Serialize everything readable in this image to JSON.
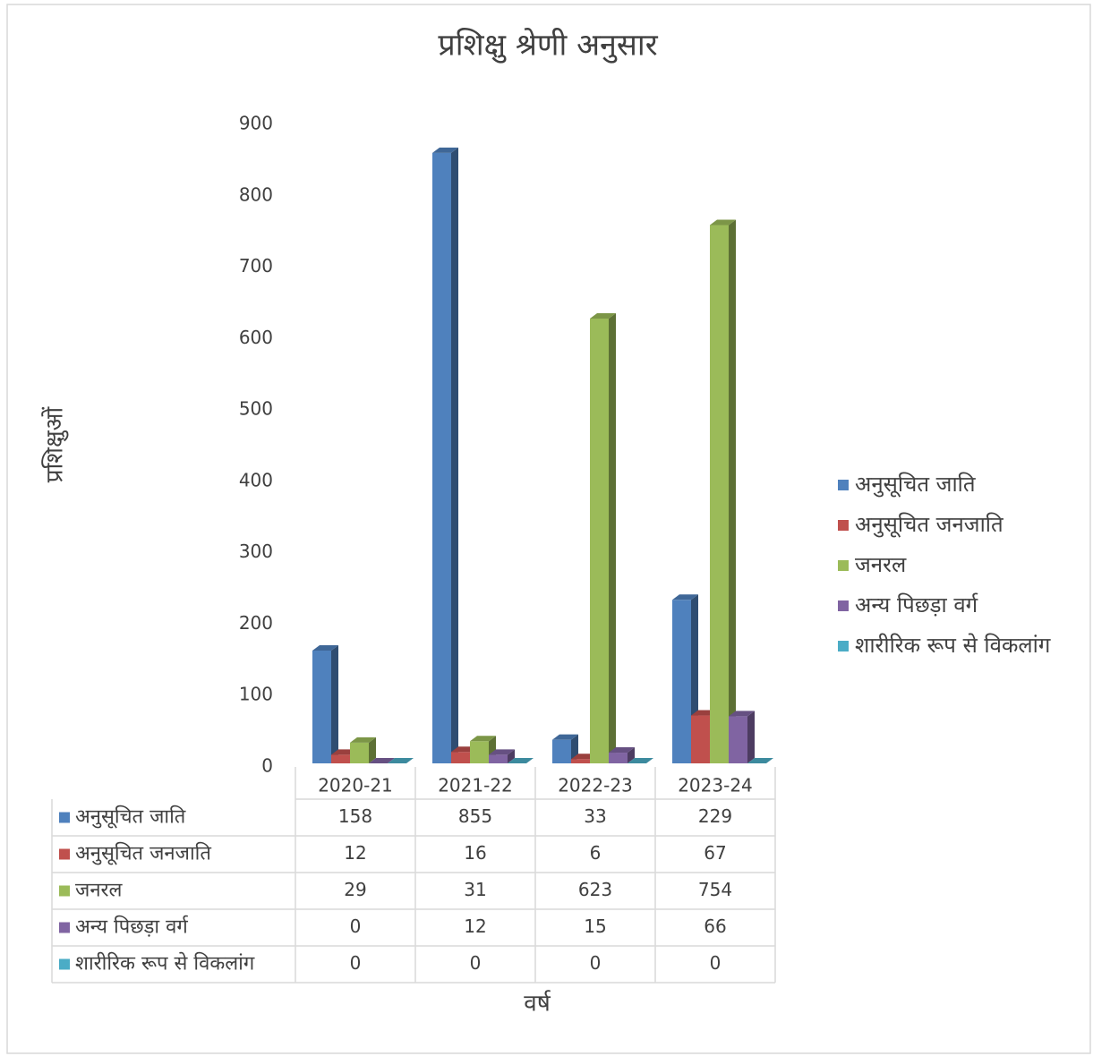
{
  "chart_data": {
    "type": "bar3d",
    "title": "प्रशिक्षु श्रेणी अनुसार",
    "x_label": "वर्ष",
    "y_label": "प्रशिक्षुओं",
    "categories": [
      "2020-21",
      "2021-22",
      "2022-23",
      "2023-24"
    ],
    "series": [
      {
        "name": "अनुसूचित जाति",
        "color": "#4f81bd",
        "values": [
          158,
          855,
          33,
          229
        ]
      },
      {
        "name": "अनुसूचित जनजाति",
        "color": "#c0504d",
        "values": [
          12,
          16,
          6,
          67
        ]
      },
      {
        "name": "जनरल",
        "color": "#9bbb59",
        "values": [
          29,
          31,
          623,
          754
        ]
      },
      {
        "name": "अन्य पिछड़ा वर्ग",
        "color": "#8064a2",
        "values": [
          0,
          12,
          15,
          66
        ]
      },
      {
        "name": "शारीरिक रूप से विकलांग",
        "color": "#4bacc6",
        "values": [
          0,
          0,
          0,
          0
        ]
      }
    ],
    "ylim": [
      0,
      900
    ],
    "yticks": [
      0,
      100,
      200,
      300,
      400,
      500,
      600,
      700,
      800,
      900
    ],
    "legend": "right",
    "data_table": true
  }
}
